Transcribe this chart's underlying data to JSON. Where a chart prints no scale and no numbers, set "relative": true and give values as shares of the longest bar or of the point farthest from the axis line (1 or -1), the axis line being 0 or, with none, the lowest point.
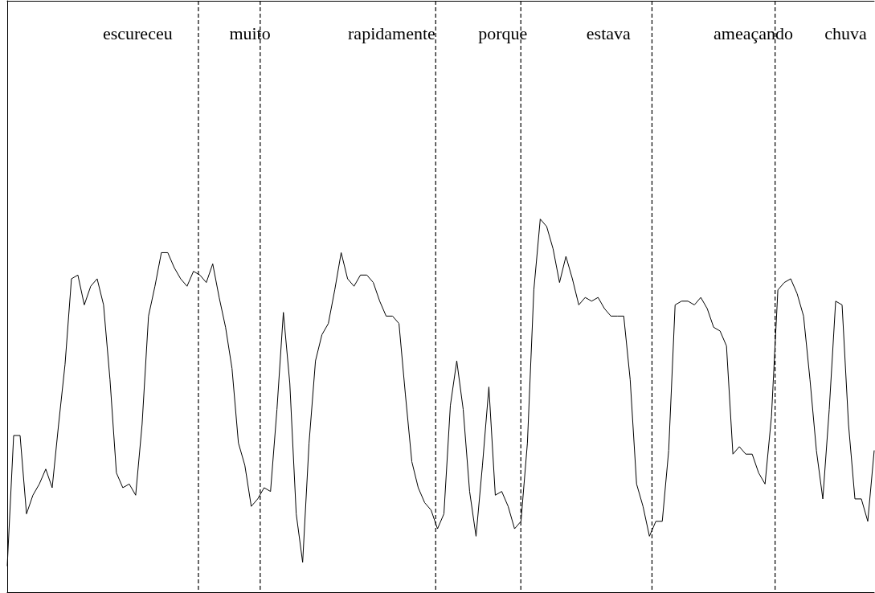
{
  "chart_data": {
    "type": "line",
    "relative": true,
    "color": "#000000",
    "tick_labels": false,
    "grid": false,
    "line_style": "solid",
    "categories": [
      null,
      null,
      null,
      null,
      null,
      null,
      null,
      null,
      null,
      null,
      null,
      null,
      null,
      null,
      null,
      null,
      null,
      null,
      null,
      null,
      null,
      null,
      null,
      null,
      null,
      null,
      null,
      null,
      null,
      null,
      null,
      null,
      null,
      null,
      null,
      null,
      null,
      null,
      null,
      null,
      null,
      null,
      null,
      null,
      null,
      null,
      null,
      null,
      null,
      null,
      null,
      null,
      null,
      null,
      null,
      null,
      null,
      null,
      null,
      null,
      null,
      null,
      null,
      null,
      null,
      null,
      null,
      null,
      null,
      null,
      null,
      null,
      null,
      null,
      null,
      null,
      null,
      null,
      null,
      null,
      null,
      null,
      null,
      null,
      null,
      null,
      null,
      null,
      null,
      null,
      null,
      null,
      null,
      null,
      null,
      null,
      null,
      null,
      null,
      null,
      null,
      null,
      null,
      null,
      null,
      null,
      null,
      null,
      null,
      null,
      null,
      null,
      null,
      null,
      null,
      null,
      null,
      null,
      null,
      null,
      null,
      null,
      null,
      null,
      null,
      null,
      null,
      null,
      null,
      null,
      null,
      null,
      null,
      null,
      null,
      null
    ],
    "values": [
      0.07,
      0.42,
      0.42,
      0.21,
      0.26,
      0.29,
      0.33,
      0.28,
      0.45,
      0.61,
      0.84,
      0.85,
      0.77,
      0.82,
      0.84,
      0.77,
      0.57,
      0.32,
      0.28,
      0.29,
      0.26,
      0.45,
      0.74,
      0.82,
      0.91,
      0.91,
      0.87,
      0.84,
      0.82,
      0.86,
      0.85,
      0.83,
      0.88,
      0.79,
      0.71,
      0.6,
      0.4,
      0.34,
      0.23,
      0.25,
      0.28,
      0.27,
      0.49,
      0.75,
      0.56,
      0.21,
      0.08,
      0.4,
      0.62,
      0.69,
      0.72,
      0.81,
      0.91,
      0.84,
      0.82,
      0.85,
      0.85,
      0.83,
      0.78,
      0.74,
      0.74,
      0.72,
      0.53,
      0.35,
      0.28,
      0.24,
      0.22,
      0.17,
      0.21,
      0.5,
      0.62,
      0.49,
      0.27,
      0.15,
      0.34,
      0.55,
      0.26,
      0.27,
      0.23,
      0.17,
      0.19,
      0.4,
      0.81,
      1,
      0.98,
      0.92,
      0.83,
      0.9,
      0.84,
      0.77,
      0.79,
      0.78,
      0.79,
      0.76,
      0.74,
      0.74,
      0.74,
      0.57,
      0.29,
      0.23,
      0.15,
      0.19,
      0.19,
      0.38,
      0.77,
      0.78,
      0.78,
      0.77,
      0.79,
      0.76,
      0.71,
      0.7,
      0.66,
      0.37,
      0.39,
      0.37,
      0.37,
      0.32,
      0.29,
      0.47,
      0.81,
      0.83,
      0.84,
      0.8,
      0.74,
      0.57,
      0.38,
      0.25,
      0.49,
      0.78,
      0.77,
      0.45,
      0.25,
      0.25,
      0.19,
      0.38
    ],
    "annotations": [
      "escureceu",
      "muito",
      "rapidamente",
      "porque",
      "estava",
      "ameaçando",
      "chuva"
    ]
  }
}
